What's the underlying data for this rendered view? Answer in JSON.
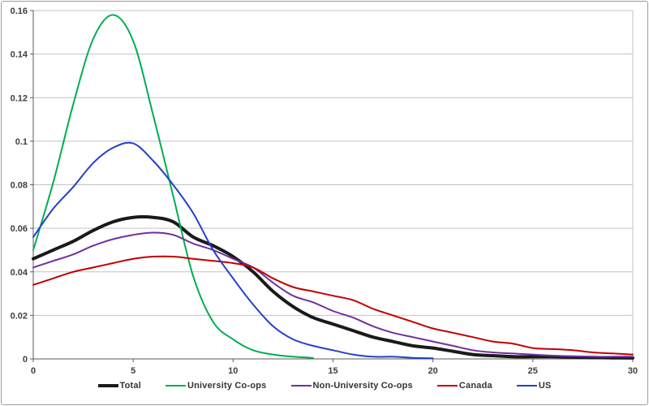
{
  "chart_data": {
    "type": "line",
    "title": "",
    "xlabel": "",
    "ylabel": "",
    "xlim": [
      0,
      30
    ],
    "ylim": [
      0,
      0.16
    ],
    "x_ticks": [
      "0",
      "5",
      "10",
      "15",
      "20",
      "25",
      "30"
    ],
    "x_tick_values": [
      0,
      5,
      10,
      15,
      20,
      25,
      30
    ],
    "y_ticks": [
      "0",
      "0.02",
      "0.04",
      "0.06",
      "0.08",
      "0.1",
      "0.12",
      "0.14",
      "0.16"
    ],
    "y_tick_values": [
      0,
      0.02,
      0.04,
      0.06,
      0.08,
      0.1,
      0.12,
      0.14,
      0.16
    ],
    "grid": "horizontal",
    "legend_position": "bottom",
    "x_step": 1,
    "series": [
      {
        "name": "Total",
        "color": "#1a1a1a",
        "line_width": 4,
        "values": [
          0.046,
          0.05,
          0.054,
          0.059,
          0.063,
          0.065,
          0.065,
          0.063,
          0.056,
          0.052,
          0.047,
          0.04,
          0.031,
          0.024,
          0.019,
          0.016,
          0.013,
          0.01,
          0.008,
          0.006,
          0.005,
          0.0035,
          0.002,
          0.0015,
          0.001,
          0.001,
          0.001,
          0.0008,
          0.0006,
          0.0005,
          0.0004
        ]
      },
      {
        "name": "University Co-ops",
        "color": "#00ae50",
        "line_width": 2,
        "values": [
          0.05,
          0.081,
          0.117,
          0.147,
          0.158,
          0.146,
          0.112,
          0.075,
          0.038,
          0.017,
          0.009,
          0.004,
          0.002,
          0.001,
          0.0005
        ]
      },
      {
        "name": "Non-University Co-ops",
        "color": "#7030a0",
        "line_width": 2,
        "values": [
          0.042,
          0.045,
          0.048,
          0.052,
          0.055,
          0.057,
          0.058,
          0.057,
          0.053,
          0.05,
          0.046,
          0.042,
          0.035,
          0.029,
          0.026,
          0.022,
          0.019,
          0.015,
          0.012,
          0.01,
          0.008,
          0.006,
          0.004,
          0.003,
          0.0025,
          0.002,
          0.0015,
          0.0012,
          0.001,
          0.001,
          0.001
        ]
      },
      {
        "name": "Canada",
        "color": "#c00000",
        "line_width": 2,
        "values": [
          0.034,
          0.037,
          0.04,
          0.042,
          0.044,
          0.046,
          0.047,
          0.047,
          0.046,
          0.045,
          0.044,
          0.042,
          0.037,
          0.033,
          0.031,
          0.029,
          0.027,
          0.023,
          0.02,
          0.017,
          0.014,
          0.012,
          0.01,
          0.008,
          0.007,
          0.005,
          0.0045,
          0.004,
          0.003,
          0.0025,
          0.002
        ]
      },
      {
        "name": "US",
        "color": "#2340c8",
        "line_width": 2,
        "values": [
          0.056,
          0.069,
          0.079,
          0.09,
          0.097,
          0.099,
          0.091,
          0.08,
          0.067,
          0.05,
          0.037,
          0.025,
          0.015,
          0.009,
          0.006,
          0.004,
          0.002,
          0.001,
          0.001,
          0.0005,
          0.0003
        ]
      }
    ]
  },
  "frame": {
    "background": "#ffffff",
    "border_color": "#9d9d9d",
    "grid_color": "#c3c3c3",
    "axis_color": "#595959",
    "tick_text_color": "#3f3f3f"
  }
}
